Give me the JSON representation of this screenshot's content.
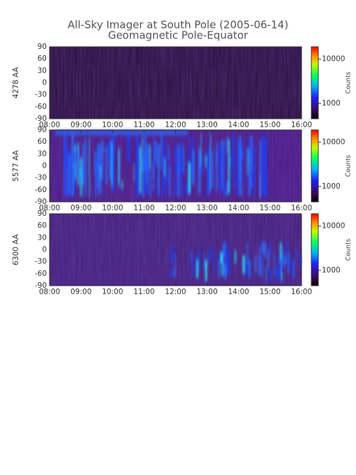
{
  "chart_data": [
    {
      "type": "keogram",
      "title": "All-Sky Imager at South Pole (2005-06-14)",
      "subtitle": "Geomagnetic Pole-Equator",
      "y_label": "4278 AA",
      "colorbar_label": "Counts",
      "xlim": [
        8,
        16
      ],
      "xticks": [
        {
          "value": 8,
          "label": "08:00"
        },
        {
          "value": 9,
          "label": "09:00"
        },
        {
          "value": 10,
          "label": "10:00"
        },
        {
          "value": 11,
          "label": "11:00"
        },
        {
          "value": 12,
          "label": "12:00"
        },
        {
          "value": 13,
          "label": "13:00"
        },
        {
          "value": 14,
          "label": "14:00"
        },
        {
          "value": 15,
          "label": "15:00"
        },
        {
          "value": 16,
          "label": "16:00"
        }
      ],
      "ylim": [
        -90,
        90
      ],
      "yticks": [
        90,
        60,
        30,
        0,
        -30,
        -60,
        -90
      ],
      "clim": [
        450,
        19000
      ],
      "cticks": [
        1000,
        10000
      ],
      "log_colorbar": true
    },
    {
      "type": "keogram",
      "y_label": "5577 AA",
      "colorbar_label": "Counts",
      "xlim": [
        8,
        16
      ],
      "xticks": [
        {
          "value": 8,
          "label": "08:00"
        },
        {
          "value": 9,
          "label": "09:00"
        },
        {
          "value": 10,
          "label": "10:00"
        },
        {
          "value": 11,
          "label": "11:00"
        },
        {
          "value": 12,
          "label": "12:00"
        },
        {
          "value": 13,
          "label": "13:00"
        },
        {
          "value": 14,
          "label": "14:00"
        },
        {
          "value": 15,
          "label": "15:00"
        },
        {
          "value": 16,
          "label": "16:00"
        }
      ],
      "ylim": [
        -90,
        90
      ],
      "yticks": [
        90,
        60,
        30,
        0,
        -30,
        -60,
        -90
      ],
      "clim": [
        450,
        19000
      ],
      "cticks": [
        1000,
        10000
      ],
      "log_colorbar": true
    },
    {
      "type": "keogram",
      "y_label": "6300 AA",
      "colorbar_label": "Counts",
      "xlim": [
        8,
        16
      ],
      "xticks": [
        {
          "value": 8,
          "label": "08:00"
        },
        {
          "value": 9,
          "label": "09:00"
        },
        {
          "value": 10,
          "label": "10:00"
        },
        {
          "value": 11,
          "label": "11:00"
        },
        {
          "value": 12,
          "label": "12:00"
        },
        {
          "value": 13,
          "label": "13:00"
        },
        {
          "value": 14,
          "label": "14:00"
        },
        {
          "value": 15,
          "label": "15:00"
        },
        {
          "value": 16,
          "label": "16:00"
        }
      ],
      "ylim": [
        -90,
        90
      ],
      "yticks": [
        90,
        60,
        30,
        0,
        -30,
        -60,
        -90
      ],
      "clim": [
        450,
        19000
      ],
      "cticks": [
        1000,
        10000
      ],
      "log_colorbar": true
    }
  ]
}
